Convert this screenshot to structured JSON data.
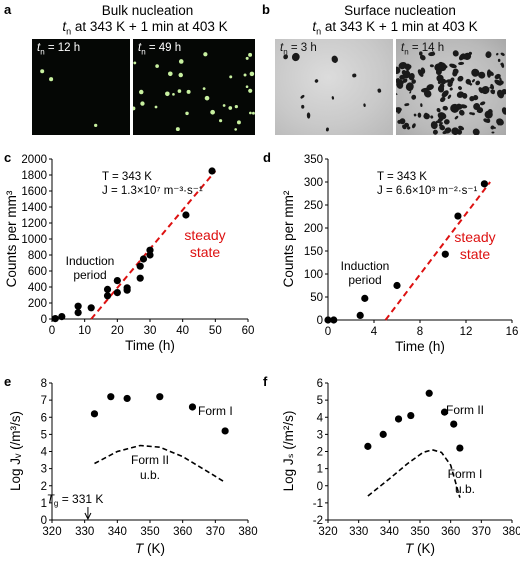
{
  "top": {
    "a": {
      "letter": "a",
      "title": "Bulk nucleation",
      "subtitle_pre": "t",
      "subtitle_sub": "n",
      "subtitle_post": " at 343 K + 1 min at 403 K",
      "photos": [
        {
          "label_t": "t",
          "label_sub": "n",
          "label_val": " = 12 h"
        },
        {
          "label_t": "t",
          "label_sub": "n",
          "label_val": " = 49 h"
        }
      ]
    },
    "b": {
      "letter": "b",
      "title": "Surface nucleation",
      "subtitle_pre": "t",
      "subtitle_sub": "n",
      "subtitle_post": " at 343 K + 1 min at 403 K",
      "photos": [
        {
          "label_t": "t",
          "label_sub": "n",
          "label_val": " = 3 h"
        },
        {
          "label_t": "t",
          "label_sub": "n",
          "label_val": " = 14 h"
        }
      ]
    },
    "colors": {
      "crystal_bulk": "#c8f0a0",
      "crystal_surface": "#1a1a1a",
      "fit_line": "#dd1111"
    }
  },
  "chart_data": [
    {
      "panel": "c",
      "type": "scatter",
      "xlabel": "Time (h)",
      "ylabel": "Counts  per mm³",
      "xlim": [
        0,
        60
      ],
      "ylim": [
        0,
        2000
      ],
      "xticks": [
        "0",
        "10",
        "20",
        "30",
        "40",
        "50",
        "60"
      ],
      "yticks": [
        "0",
        "200",
        "400",
        "600",
        "800",
        "1000",
        "1200",
        "1400",
        "1600",
        "1800",
        "2000"
      ],
      "points": [
        [
          1,
          5
        ],
        [
          3,
          30
        ],
        [
          8,
          80
        ],
        [
          8,
          160
        ],
        [
          12,
          140
        ],
        [
          17,
          290
        ],
        [
          17,
          370
        ],
        [
          20,
          330
        ],
        [
          20,
          480
        ],
        [
          23,
          390
        ],
        [
          23,
          360
        ],
        [
          27,
          510
        ],
        [
          27,
          660
        ],
        [
          28,
          750
        ],
        [
          30,
          800
        ],
        [
          30,
          860
        ],
        [
          41,
          1300
        ],
        [
          49,
          1850
        ]
      ],
      "fit": [
        [
          12,
          0
        ],
        [
          50,
          1850
        ]
      ],
      "annot_T": "T = 343 K",
      "annot_J": "J = 1.3×10⁷ m⁻³·s⁻¹",
      "induction": [
        "Induction",
        "period"
      ],
      "steady": [
        "steady",
        "state"
      ]
    },
    {
      "panel": "d",
      "type": "scatter",
      "xlabel": "Time (h)",
      "ylabel": "Counts  per mm²",
      "xlim": [
        0,
        16
      ],
      "ylim": [
        0,
        350
      ],
      "xticks": [
        "0",
        "4",
        "8",
        "12",
        "16"
      ],
      "yticks": [
        "0",
        "50",
        "100",
        "150",
        "200",
        "250",
        "300",
        "350"
      ],
      "points": [
        [
          0,
          0
        ],
        [
          0.5,
          0
        ],
        [
          2.8,
          10
        ],
        [
          3.2,
          47
        ],
        [
          6,
          75
        ],
        [
          10.2,
          143
        ],
        [
          11.3,
          226
        ],
        [
          13.6,
          296
        ]
      ],
      "fit": [
        [
          5,
          0
        ],
        [
          14.1,
          300
        ]
      ],
      "annot_T": "T = 343 K",
      "annot_J": "J = 6.6×10³ m⁻²·s⁻¹",
      "induction": [
        "Induction",
        "period"
      ],
      "steady": [
        "steady",
        "state"
      ]
    },
    {
      "panel": "e",
      "type": "scatter",
      "xlabel": "T (K)",
      "ylabel": "Log Jᵥ (/m³/s)",
      "xlim": [
        320,
        380
      ],
      "ylim": [
        0,
        8
      ],
      "xticks": [
        "320",
        "330",
        "340",
        "350",
        "360",
        "370",
        "380"
      ],
      "yticks": [
        "0",
        "1",
        "2",
        "3",
        "4",
        "5",
        "6",
        "7",
        "8"
      ],
      "points": [
        [
          333,
          6.2
        ],
        [
          338,
          7.2
        ],
        [
          343,
          7.1
        ],
        [
          353,
          7.2
        ],
        [
          363,
          6.6
        ],
        [
          373,
          5.2
        ]
      ],
      "curve": [
        [
          333,
          3.3
        ],
        [
          340,
          4.0
        ],
        [
          347,
          4.35
        ],
        [
          353,
          4.25
        ],
        [
          360,
          3.7
        ],
        [
          367,
          2.9
        ],
        [
          373,
          2.2
        ]
      ],
      "label_form1": "Form I",
      "label_form2": [
        "Form II",
        "u.b."
      ],
      "tg_label": "T",
      "tg_sub": "g",
      "tg_val": " = 331 K",
      "tg_x": 331
    },
    {
      "panel": "f",
      "type": "scatter",
      "xlabel": "T (K)",
      "ylabel": "Log Jₛ (/m²/s)",
      "xlim": [
        320,
        380
      ],
      "ylim": [
        -2,
        6
      ],
      "xticks": [
        "320",
        "330",
        "340",
        "350",
        "360",
        "370",
        "380"
      ],
      "yticks": [
        "-2",
        "-1",
        "0",
        "1",
        "2",
        "3",
        "4",
        "5",
        "6"
      ],
      "points": [
        [
          333,
          2.3
        ],
        [
          338,
          3.0
        ],
        [
          343,
          3.9
        ],
        [
          347,
          4.1
        ],
        [
          353,
          5.4
        ],
        [
          358,
          4.3
        ],
        [
          361,
          3.6
        ],
        [
          363,
          2.2
        ]
      ],
      "curve": [
        [
          333,
          -0.6
        ],
        [
          340,
          0.4
        ],
        [
          346,
          1.3
        ],
        [
          351,
          1.95
        ],
        [
          354,
          2.1
        ],
        [
          357,
          1.95
        ],
        [
          360,
          1.2
        ],
        [
          363,
          -0.7
        ]
      ],
      "label_form1": [
        "Form I",
        "u.b."
      ],
      "label_form2": "Form II"
    }
  ]
}
